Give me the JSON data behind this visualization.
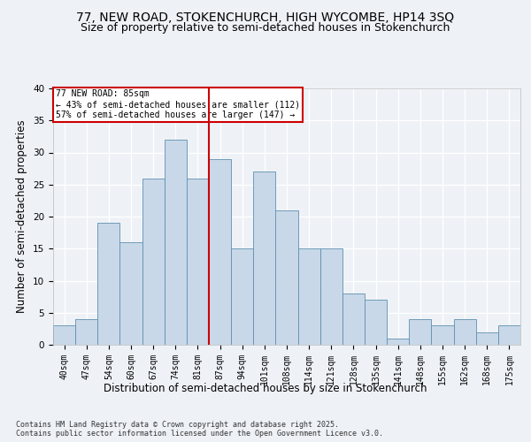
{
  "title_line1": "77, NEW ROAD, STOKENCHURCH, HIGH WYCOMBE, HP14 3SQ",
  "title_line2": "Size of property relative to semi-detached houses in Stokenchurch",
  "xlabel": "Distribution of semi-detached houses by size in Stokenchurch",
  "ylabel": "Number of semi-detached properties",
  "footnote": "Contains HM Land Registry data © Crown copyright and database right 2025.\nContains public sector information licensed under the Open Government Licence v3.0.",
  "bin_labels": [
    "40sqm",
    "47sqm",
    "54sqm",
    "60sqm",
    "67sqm",
    "74sqm",
    "81sqm",
    "87sqm",
    "94sqm",
    "101sqm",
    "108sqm",
    "114sqm",
    "121sqm",
    "128sqm",
    "135sqm",
    "141sqm",
    "148sqm",
    "155sqm",
    "162sqm",
    "168sqm",
    "175sqm"
  ],
  "bar_values": [
    3,
    4,
    19,
    16,
    26,
    32,
    26,
    29,
    15,
    27,
    21,
    15,
    15,
    8,
    7,
    1,
    4,
    3,
    4,
    2,
    3
  ],
  "bar_color": "#c8d8e8",
  "bar_edge_color": "#6090b0",
  "vline_x_index": 6.5,
  "property_label": "77 NEW ROAD: 85sqm",
  "annotation_smaller": "← 43% of semi-detached houses are smaller (112)",
  "annotation_larger": "57% of semi-detached houses are larger (147) →",
  "annotation_box_color": "#ffffff",
  "annotation_box_edge": "#cc0000",
  "vline_color": "#cc0000",
  "ylim": [
    0,
    40
  ],
  "yticks": [
    0,
    5,
    10,
    15,
    20,
    25,
    30,
    35,
    40
  ],
  "background_color": "#eef2f7",
  "grid_color": "#ffffff",
  "title_fontsize": 10,
  "subtitle_fontsize": 9,
  "axis_label_fontsize": 8.5,
  "tick_fontsize": 7
}
